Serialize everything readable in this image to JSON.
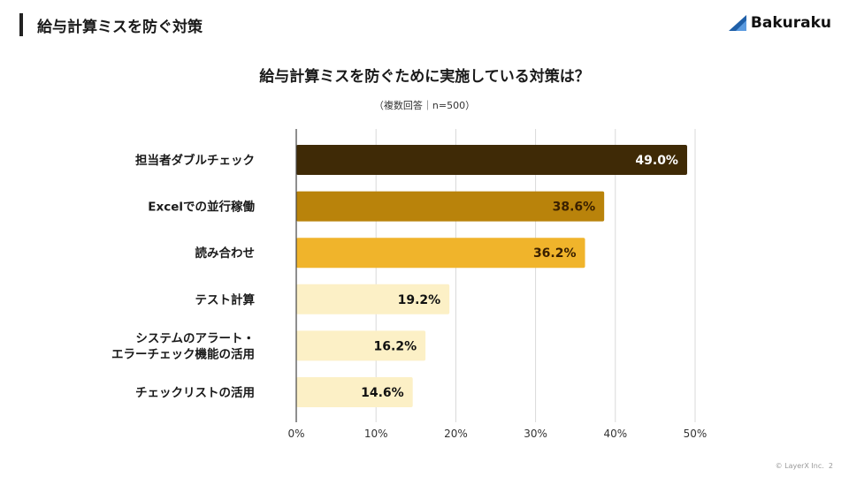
{
  "header": {
    "title": "給与計算ミスを防ぐ対策",
    "logo_text": "Bakuraku",
    "logo_color": "#1f5fa8"
  },
  "footer": {
    "copyright": "© LayerX Inc.",
    "page": "2"
  },
  "chart_data": {
    "type": "bar",
    "orientation": "horizontal",
    "title": "給与計算ミスを防ぐために実施している対策は？",
    "subtitle": "（複数回答｜n=500）",
    "categories": [
      "担当者ダブルチェック",
      "Excelでの並行稼働",
      "読み合わせ",
      "テスト計算",
      "システムのアラート・\nエラーチェック機能の活用",
      "チェックリストの活用"
    ],
    "values": [
      49.0,
      38.6,
      36.2,
      19.2,
      16.2,
      14.6
    ],
    "data_labels": [
      "49.0%",
      "38.6%",
      "36.2%",
      "19.2%",
      "16.2%",
      "14.6%"
    ],
    "bar_colors": [
      "#3f2a06",
      "#b9830b",
      "#f0b42b",
      "#fcf0c6",
      "#fcf0c6",
      "#fcf0c6"
    ],
    "label_colors": [
      "#ffffff",
      "#3a2000",
      "#3a2000",
      "#111111",
      "#111111",
      "#111111"
    ],
    "xlim": [
      0,
      50
    ],
    "xticks": [
      "0%",
      "10%",
      "20%",
      "30%",
      "40%",
      "50%"
    ],
    "grid": true
  }
}
